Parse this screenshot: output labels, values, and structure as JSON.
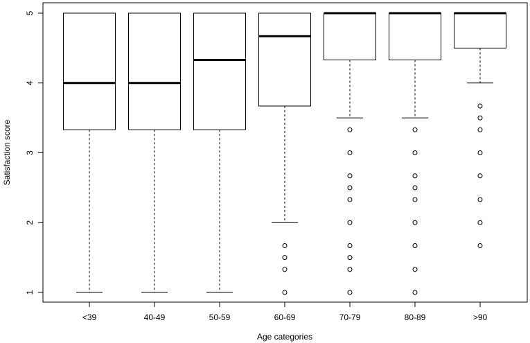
{
  "chart_data": {
    "type": "boxplot",
    "title": "",
    "xlabel": "Age categories",
    "ylabel": "Satisfaction score",
    "ylim": [
      0.8,
      5.2
    ],
    "yticks": [
      1,
      2,
      3,
      4,
      5
    ],
    "grid": false,
    "categories": [
      "<39",
      "40-49",
      "50-59",
      "60-69",
      "70-79",
      "80-89",
      ">90"
    ],
    "boxes": [
      {
        "category": "<39",
        "whisker_low": 1.0,
        "q1": 3.33,
        "median": 4.0,
        "q3": 5.0,
        "whisker_high": 5.0,
        "outliers": []
      },
      {
        "category": "40-49",
        "whisker_low": 1.0,
        "q1": 3.33,
        "median": 4.0,
        "q3": 5.0,
        "whisker_high": 5.0,
        "outliers": []
      },
      {
        "category": "50-59",
        "whisker_low": 1.0,
        "q1": 3.33,
        "median": 4.33,
        "q3": 5.0,
        "whisker_high": 5.0,
        "outliers": []
      },
      {
        "category": "60-69",
        "whisker_low": 2.0,
        "q1": 3.67,
        "median": 4.67,
        "q3": 5.0,
        "whisker_high": 5.0,
        "outliers": [
          1.67,
          1.5,
          1.33,
          1.0
        ]
      },
      {
        "category": "70-79",
        "whisker_low": 3.5,
        "q1": 4.33,
        "median": 5.0,
        "q3": 5.0,
        "whisker_high": 5.0,
        "outliers": [
          3.33,
          3.0,
          2.67,
          2.5,
          2.33,
          2.0,
          1.67,
          1.5,
          1.33,
          1.0
        ]
      },
      {
        "category": "80-89",
        "whisker_low": 3.5,
        "q1": 4.33,
        "median": 5.0,
        "q3": 5.0,
        "whisker_high": 5.0,
        "outliers": [
          3.33,
          3.0,
          2.67,
          2.5,
          2.33,
          2.0,
          1.67,
          1.33,
          1.0
        ]
      },
      {
        "category": ">90",
        "whisker_low": 4.0,
        "q1": 4.5,
        "median": 5.0,
        "q3": 5.0,
        "whisker_high": 5.0,
        "outliers": [
          3.67,
          3.5,
          3.33,
          3.0,
          2.67,
          2.33,
          2.0,
          1.67
        ]
      }
    ]
  }
}
